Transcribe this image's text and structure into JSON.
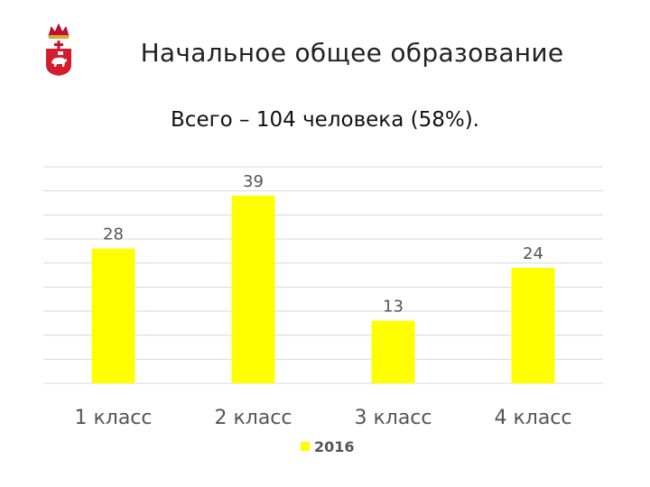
{
  "slide": {
    "title": "Начальное общее образование",
    "subtitle": "Всего – 104 человека (58%)."
  },
  "emblem": {
    "name": "perm-krai-coat-of-arms"
  },
  "colors": {
    "bar": "#FFFF00",
    "grid": "#D9D9D9",
    "text": "#595959"
  },
  "chart_data": {
    "type": "bar",
    "categories": [
      "1 класс",
      "2 класс",
      "3 класс",
      "4 класс"
    ],
    "series": [
      {
        "name": "2016",
        "values": [
          28,
          39,
          13,
          24
        ]
      }
    ],
    "ylim": [
      0,
      45
    ],
    "grid": true,
    "legend": "bottom",
    "data_labels": true
  }
}
